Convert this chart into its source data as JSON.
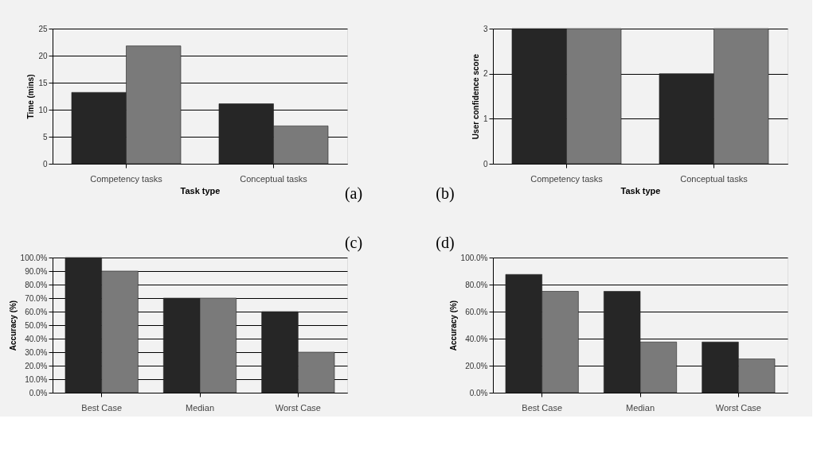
{
  "chart_data": [
    {
      "type": "bar",
      "xlabel": "Task type",
      "ylabel": "Time (mins)",
      "categories": [
        "Competency tasks",
        "Conceptual tasks"
      ],
      "series": [
        {
          "color": "#262626",
          "values": [
            13.2,
            11.1
          ]
        },
        {
          "color": "#7a7a7a",
          "values": [
            21.8,
            7
          ]
        }
      ],
      "ylim": [
        0,
        25
      ],
      "yticks": [
        0,
        5,
        10,
        15,
        20,
        25
      ],
      "grid": "y",
      "legend": false,
      "annotations": [
        "(a)"
      ]
    },
    {
      "type": "bar",
      "xlabel": "Task type",
      "ylabel": "User confidence score",
      "categories": [
        "Competency tasks",
        "Conceptual tasks"
      ],
      "series": [
        {
          "color": "#262626",
          "values": [
            3,
            2
          ]
        },
        {
          "color": "#7a7a7a",
          "values": [
            3,
            3
          ]
        }
      ],
      "ylim": [
        0,
        3
      ],
      "yticks": [
        0,
        1,
        2,
        3
      ],
      "grid": "y",
      "legend": false,
      "annotations": [
        "(b)"
      ]
    },
    {
      "type": "bar",
      "ylabel": "Accuracy (%)",
      "categories": [
        "Best Case",
        "Median",
        "Worst Case"
      ],
      "series": [
        {
          "color": "#262626",
          "values": [
            100,
            70,
            60
          ]
        },
        {
          "color": "#7a7a7a",
          "values": [
            90,
            70,
            30
          ]
        }
      ],
      "ylim": [
        0,
        100
      ],
      "yticks": [
        {
          "value": 0,
          "label": "0.0%"
        },
        {
          "value": 10,
          "label": "10.0%"
        },
        {
          "value": 20,
          "label": "20.0%"
        },
        {
          "value": 30,
          "label": "30.0%"
        },
        {
          "value": 40,
          "label": "40.0%"
        },
        {
          "value": 50,
          "label": "50.0%"
        },
        {
          "value": 60,
          "label": "60.0%"
        },
        {
          "value": 70,
          "label": "70.0%"
        },
        {
          "value": 80,
          "label": "80.0%"
        },
        {
          "value": 90,
          "label": "90.0%"
        },
        {
          "value": 100,
          "label": "100.0%"
        }
      ],
      "grid": "y",
      "legend": false,
      "annotations": [
        "(c)"
      ]
    },
    {
      "type": "bar",
      "ylabel": "Accuracy (%)",
      "categories": [
        "Best Case",
        "Median",
        "Worst Case"
      ],
      "series": [
        {
          "color": "#262626",
          "values": [
            87.5,
            75,
            37.5
          ]
        },
        {
          "color": "#7a7a7a",
          "values": [
            75,
            37.5,
            25
          ]
        }
      ],
      "ylim": [
        0,
        100
      ],
      "yticks": [
        {
          "value": 0,
          "label": "0.0%"
        },
        {
          "value": 20,
          "label": "20.0%"
        },
        {
          "value": 40,
          "label": "40.0%"
        },
        {
          "value": 60,
          "label": "60.0%"
        },
        {
          "value": 80,
          "label": "80.0%"
        },
        {
          "value": 100,
          "label": "100.0%"
        }
      ],
      "grid": "y",
      "legend": false,
      "annotations": [
        "(d)"
      ]
    }
  ]
}
